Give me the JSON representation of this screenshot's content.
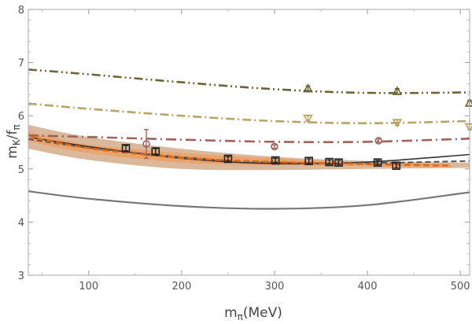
{
  "chart_data": {
    "type": "line",
    "title": "",
    "xlabel": "m",
    "xlabel_sub": "π",
    "xlabel_unit": "(MeV)",
    "ylabel": "m",
    "ylabel_sub1": "K",
    "ylabel_sep": "/f",
    "ylabel_sub2": "π",
    "xlim": [
      35,
      510
    ],
    "ylim": [
      3,
      8
    ],
    "xticks": [
      100,
      200,
      300,
      400,
      500
    ],
    "yticks": [
      3,
      4,
      5,
      6,
      7,
      8
    ],
    "bands": [
      {
        "name": "outer band",
        "color": "#d9b89c",
        "x": [
          35,
          100,
          200,
          300,
          400,
          510
        ],
        "upper": [
          5.83,
          5.6,
          5.38,
          5.23,
          5.15,
          5.12
        ],
        "lower": [
          5.38,
          5.17,
          5.0,
          4.98,
          5.0,
          5.02
        ]
      },
      {
        "name": "inner band",
        "color": "#eba36e",
        "x": [
          35,
          100,
          200,
          300,
          400,
          490
        ],
        "upper": [
          5.7,
          5.46,
          5.3,
          5.2,
          5.12,
          5.1
        ],
        "lower": [
          5.52,
          5.3,
          5.12,
          5.07,
          5.05,
          5.03
        ]
      }
    ],
    "series": [
      {
        "name": "dark dash-dot-dot",
        "color": "#6e6536",
        "dash": "11,4,2,4,2,4",
        "width": 2.6,
        "x": [
          35,
          100,
          200,
          300,
          400,
          510
        ],
        "y": [
          6.87,
          6.78,
          6.63,
          6.5,
          6.43,
          6.44
        ]
      },
      {
        "name": "tan dash-dot",
        "color": "#b8a467",
        "dash": "11,4,2,4",
        "width": 2.6,
        "x": [
          35,
          100,
          200,
          300,
          400,
          510
        ],
        "y": [
          6.23,
          6.13,
          6.0,
          5.9,
          5.86,
          5.9
        ]
      },
      {
        "name": "mauve dash-dot",
        "color": "#a2625c",
        "dash": "13,5,2,5",
        "width": 2.6,
        "x": [
          35,
          100,
          200,
          300,
          400,
          510
        ],
        "y": [
          5.63,
          5.6,
          5.55,
          5.51,
          5.51,
          5.57
        ]
      },
      {
        "name": "black solid",
        "color": "#333333",
        "dash": "",
        "width": 1.6,
        "x": [
          35,
          100,
          200,
          300,
          400,
          510
        ],
        "y": [
          5.6,
          5.42,
          5.2,
          5.1,
          5.13,
          5.27
        ]
      },
      {
        "name": "grey dashed",
        "color": "#555555",
        "dash": "7,4",
        "width": 2,
        "x": [
          35,
          100,
          200,
          300,
          400,
          510
        ],
        "y": [
          5.56,
          5.4,
          5.22,
          5.12,
          5.11,
          5.15
        ]
      },
      {
        "name": "orange dashed",
        "color": "#e06a14",
        "dash": "8,4",
        "width": 2.6,
        "x": [
          35,
          100,
          200,
          300,
          400,
          490
        ],
        "y": [
          5.61,
          5.39,
          5.21,
          5.13,
          5.09,
          5.06
        ]
      },
      {
        "name": "grey solid lower",
        "color": "#777777",
        "dash": "",
        "width": 2.2,
        "x": [
          35,
          100,
          200,
          300,
          400,
          510
        ],
        "y": [
          4.58,
          4.44,
          4.3,
          4.25,
          4.32,
          4.56
        ]
      }
    ],
    "points": [
      {
        "name": "squares",
        "marker": "square",
        "color": "#222222",
        "x": [
          140,
          172,
          250,
          301,
          337,
          359,
          369,
          411,
          431
        ],
        "y": [
          5.39,
          5.33,
          5.19,
          5.16,
          5.15,
          5.13,
          5.12,
          5.12,
          5.06
        ],
        "err": [
          0.05,
          0.05,
          0.04,
          0.04,
          0.04,
          0.04,
          0.04,
          0.04,
          0.04
        ]
      },
      {
        "name": "circle with large error",
        "marker": "circle",
        "color": "#a2625c",
        "x": [
          162
        ],
        "y": [
          5.47
        ],
        "err": [
          0.27
        ]
      },
      {
        "name": "circles",
        "marker": "circle",
        "color": "#a2625c",
        "x": [
          300,
          412
        ],
        "y": [
          5.42,
          5.53
        ],
        "err": [
          0.03,
          0.03
        ]
      },
      {
        "name": "down triangles",
        "marker": "tri-down",
        "color": "#b8a467",
        "x": [
          336,
          432,
          510
        ],
        "y": [
          5.95,
          5.87,
          5.79
        ],
        "err": [
          0.05,
          0.05,
          0.05
        ]
      },
      {
        "name": "up triangles",
        "marker": "tri-up",
        "color": "#6e6536",
        "x": [
          336,
          432,
          510
        ],
        "y": [
          6.51,
          6.46,
          6.24
        ],
        "err": [
          0.05,
          0.05,
          0.05
        ]
      }
    ]
  }
}
